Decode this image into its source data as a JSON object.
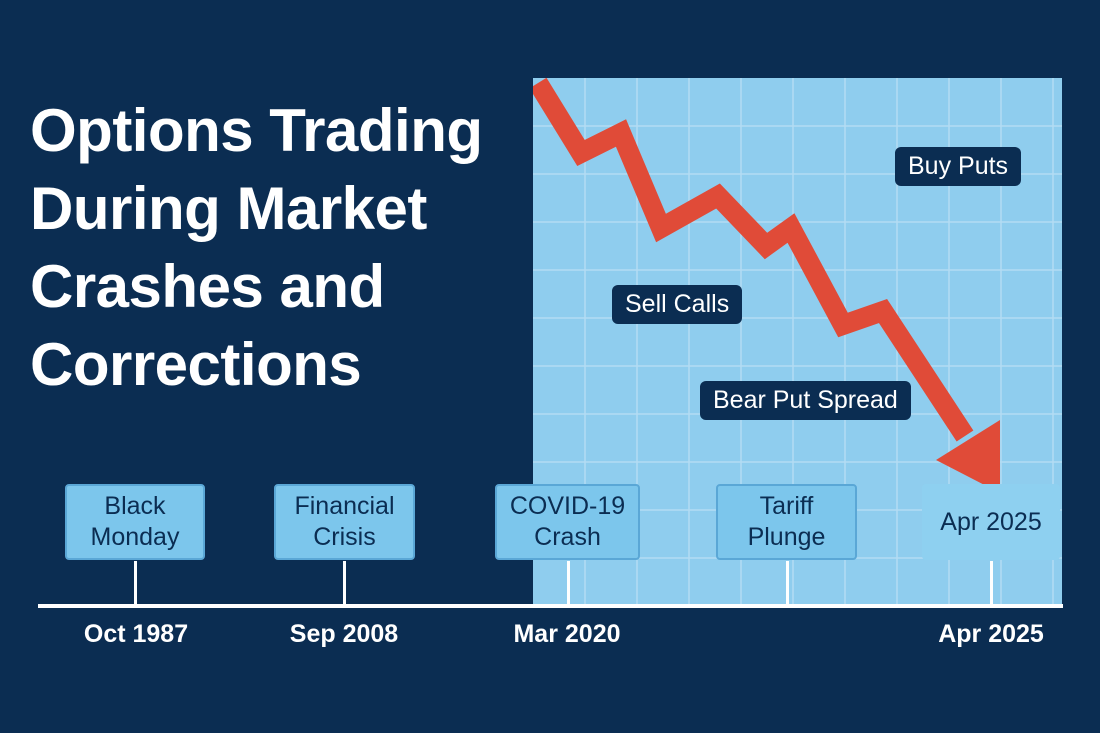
{
  "title_lines": [
    "Options Trading",
    "During Market",
    "Crashes and",
    "Corrections"
  ],
  "strategies": [
    "Buy Puts",
    "Sell Calls",
    "Bear Put Spread"
  ],
  "events": [
    {
      "lines": [
        "Black",
        "Monday"
      ],
      "date": "Oct 1987"
    },
    {
      "lines": [
        "Financial",
        "Crisis"
      ],
      "date": "Sep 2008"
    },
    {
      "lines": [
        "COVID-19",
        "Crash"
      ],
      "date": "Mar 2020"
    },
    {
      "lines": [
        "Tariff",
        "Plunge"
      ],
      "date": ""
    },
    {
      "lines": [
        "Apr 2025"
      ],
      "date": "Apr 2025"
    }
  ],
  "colors": {
    "background": "#0b2d52",
    "panel": "#8fcdee",
    "grid": "#b3dcf3",
    "arrow": "#e04b38",
    "event_box": "#7cc6ec"
  }
}
